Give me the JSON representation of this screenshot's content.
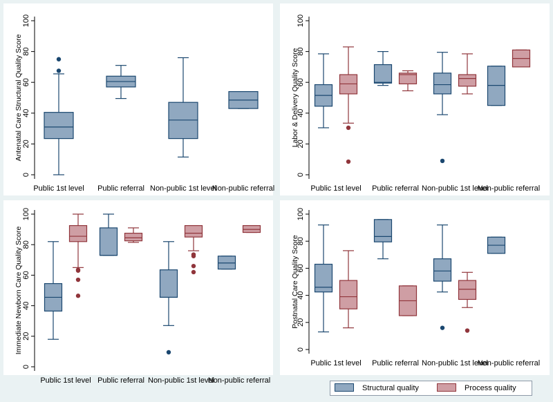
{
  "legend": {
    "structural": "Structural quality",
    "process": "Process quality"
  },
  "colors": {
    "structural_fill": "#90a8c0",
    "structural_line": "#1a476f",
    "process_fill": "#cf9ea4",
    "process_line": "#90353b",
    "panel_bg": "#ffffff",
    "outer_bg": "#eaf2f3"
  },
  "chart_data": [
    {
      "type": "box",
      "ylabel": "Antenatal Care Structural Quality Score",
      "ylim": [
        0,
        100
      ],
      "yticks": [
        "0",
        "20",
        "40",
        "60",
        "80",
        "100"
      ],
      "categories": [
        "Public 1st level",
        "Public referral",
        "Non-public 1st level",
        "Non-public referral"
      ],
      "series": [
        {
          "name": "Structural quality",
          "boxes": [
            {
              "min": 0,
              "q1": 23.5,
              "median": 31,
              "q3": 40.5,
              "max": 65.5,
              "outliers": [
                67.5,
                75
              ]
            },
            {
              "min": 49.5,
              "q1": 57,
              "median": 60.5,
              "q3": 64,
              "max": 71,
              "outliers": []
            },
            {
              "min": 11.5,
              "q1": 23.5,
              "median": 35.5,
              "q3": 47,
              "max": 76,
              "outliers": []
            },
            {
              "min": 43,
              "q1": 43,
              "median": 48.5,
              "q3": 54,
              "max": 54,
              "outliers": []
            }
          ]
        }
      ]
    },
    {
      "type": "box",
      "ylabel": "Labor & Delivery Quality Score",
      "ylim": [
        0,
        100
      ],
      "yticks": [
        "0",
        "20",
        "40",
        "60",
        "80",
        "100"
      ],
      "categories": [
        "Public 1st level",
        "Public referral",
        "Non-public 1st level",
        "Non-public referral"
      ],
      "series": [
        {
          "name": "Structural quality",
          "boxes": [
            {
              "min": 30.5,
              "q1": 44.5,
              "median": 51.5,
              "q3": 58.5,
              "max": 78.5,
              "outliers": []
            },
            {
              "min": 58,
              "q1": 59.5,
              "median": 60,
              "q3": 71.5,
              "max": 80,
              "outliers": []
            },
            {
              "min": 39,
              "q1": 52.5,
              "median": 58.5,
              "q3": 66,
              "max": 79.5,
              "outliers": [
                9
              ]
            },
            {
              "min": 45,
              "q1": 45,
              "median": 58,
              "q3": 70.5,
              "max": 70.5,
              "outliers": []
            }
          ]
        },
        {
          "name": "Process quality",
          "boxes": [
            {
              "min": 33.5,
              "q1": 52.5,
              "median": 59,
              "q3": 65,
              "max": 83,
              "outliers": [
                30.5,
                8.5
              ]
            },
            {
              "min": 54.5,
              "q1": 59,
              "median": 65,
              "q3": 66,
              "max": 67.5,
              "outliers": []
            },
            {
              "min": 52.5,
              "q1": 57.5,
              "median": 62.5,
              "q3": 65,
              "max": 78.5,
              "outliers": []
            },
            {
              "min": 70,
              "q1": 70,
              "median": 75.5,
              "q3": 81,
              "max": 81,
              "outliers": []
            }
          ]
        }
      ]
    },
    {
      "type": "box",
      "ylabel": "Immediate Newborn Care Quality Score",
      "ylim": [
        0,
        100
      ],
      "yticks": [
        "0",
        "20",
        "40",
        "60",
        "80",
        "100"
      ],
      "categories": [
        "Public 1st level",
        "Public referral",
        "Non-public 1st level",
        "Non-public referral"
      ],
      "series": [
        {
          "name": "Structural quality",
          "boxes": [
            {
              "min": 18,
              "q1": 36.5,
              "median": 45.5,
              "q3": 54.5,
              "max": 82,
              "outliers": []
            },
            {
              "min": 73,
              "q1": 73,
              "median": 73,
              "q3": 91,
              "max": 100,
              "outliers": []
            },
            {
              "min": 27,
              "q1": 45.5,
              "median": 45.5,
              "q3": 63.5,
              "max": 82,
              "outliers": [
                9.5
              ]
            },
            {
              "min": 64,
              "q1": 64,
              "median": 68,
              "q3": 72.5,
              "max": 72.5,
              "outliers": []
            }
          ]
        },
        {
          "name": "Process quality",
          "boxes": [
            {
              "min": 65,
              "q1": 82,
              "median": 85.5,
              "q3": 92.5,
              "max": 100,
              "outliers": [
                63.5,
                63,
                57,
                46.5
              ]
            },
            {
              "min": 81.5,
              "q1": 82.5,
              "median": 84.5,
              "q3": 87.5,
              "max": 91,
              "outliers": []
            },
            {
              "min": 76,
              "q1": 85,
              "median": 87.5,
              "q3": 92.5,
              "max": 92.5,
              "outliers": [
                73.5,
                72.5,
                66,
                62
              ]
            },
            {
              "min": 88,
              "q1": 88,
              "median": 90,
              "q3": 92.5,
              "max": 92.5,
              "outliers": []
            }
          ]
        }
      ]
    },
    {
      "type": "box",
      "ylabel": "Postnatal Care Quality Score",
      "ylim": [
        0,
        100
      ],
      "yticks": [
        "0",
        "20",
        "40",
        "60",
        "80",
        "100"
      ],
      "categories": [
        "Public 1st level",
        "Public referral",
        "Non-public 1st level",
        "Non-public referral"
      ],
      "series": [
        {
          "name": "Structural quality",
          "boxes": [
            {
              "min": 13,
              "q1": 42.5,
              "median": 46,
              "q3": 63,
              "max": 92,
              "outliers": []
            },
            {
              "min": 67,
              "q1": 79.5,
              "median": 83.5,
              "q3": 96,
              "max": 96,
              "outliers": []
            },
            {
              "min": 42.5,
              "q1": 50.5,
              "median": 58,
              "q3": 67,
              "max": 92,
              "outliers": [
                16
              ]
            },
            {
              "min": 71,
              "q1": 71,
              "median": 77,
              "q3": 83,
              "max": 83,
              "outliers": []
            }
          ]
        },
        {
          "name": "Process quality",
          "boxes": [
            {
              "min": 16,
              "q1": 30,
              "median": 39,
              "q3": 51,
              "max": 73,
              "outliers": []
            },
            {
              "min": 25,
              "q1": 25,
              "median": 36,
              "q3": 47,
              "max": 47,
              "outliers": []
            },
            {
              "min": 31,
              "q1": 37,
              "median": 44.5,
              "q3": 51,
              "max": 57,
              "outliers": [
                14
              ]
            },
            null
          ]
        }
      ]
    }
  ]
}
